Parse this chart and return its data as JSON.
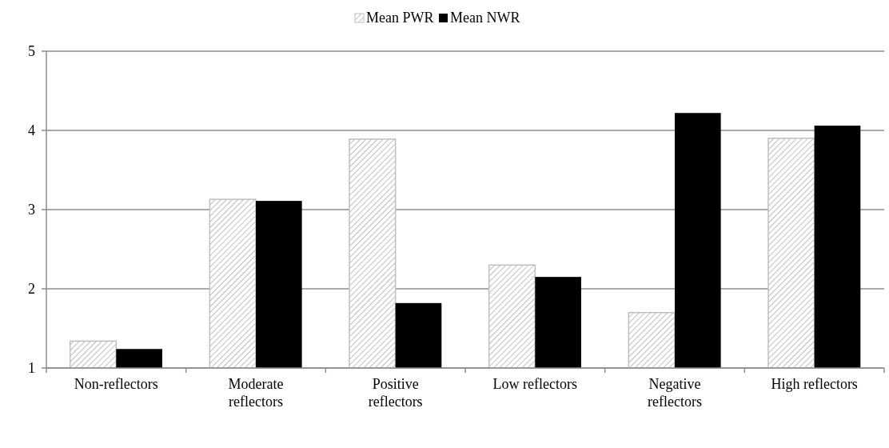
{
  "chart_data": {
    "type": "bar",
    "categories": [
      "Non-reflectors",
      "Moderate reflectors",
      "Positive reflectors",
      "Low reflectors",
      "Negative reflectors",
      "High reflectors"
    ],
    "series": [
      {
        "name": "Mean PWR",
        "color": "#bfbfbf",
        "values": [
          1.34,
          3.13,
          3.89,
          2.3,
          1.7,
          3.9
        ]
      },
      {
        "name": "Mean NWR",
        "color": "#000000",
        "values": [
          1.24,
          3.11,
          1.82,
          2.15,
          4.22,
          4.06
        ]
      }
    ],
    "ylim": [
      1,
      5
    ],
    "yticks": [
      1,
      2,
      3,
      4,
      5
    ],
    "grid": "y",
    "legend": "top"
  }
}
